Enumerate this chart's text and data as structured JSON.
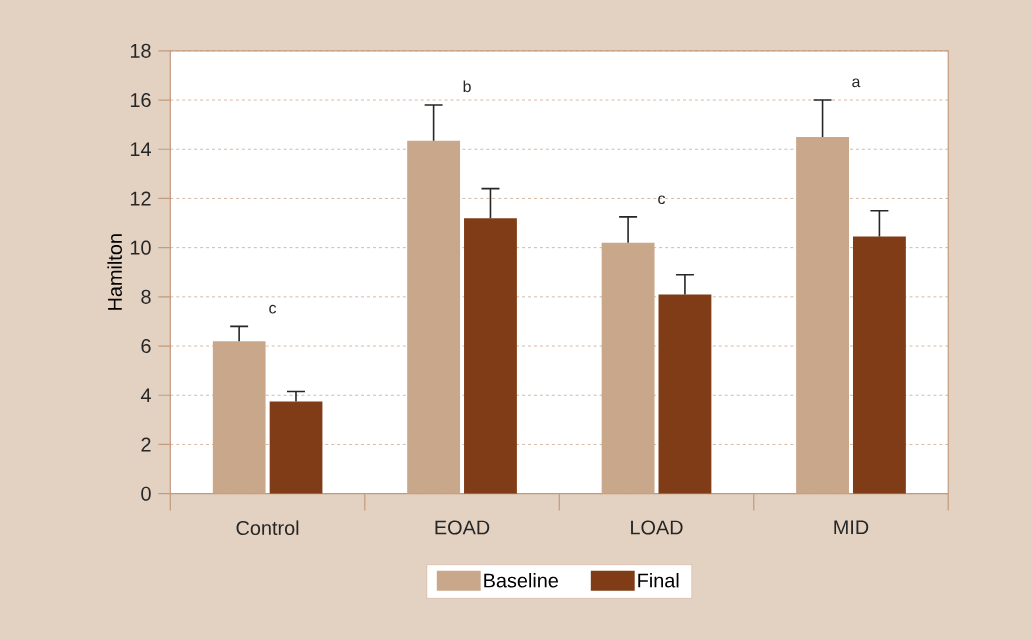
{
  "chart_data": {
    "type": "bar",
    "ylabel": "Hamilton",
    "categories": [
      "Control",
      "EOAD",
      "LOAD",
      "MID"
    ],
    "series": [
      {
        "name": "Baseline",
        "color": "#c8a78a",
        "values": [
          6.2,
          14.35,
          10.2,
          14.5
        ],
        "errors": [
          [
            6.2,
            6.8
          ],
          [
            14.35,
            15.8
          ],
          [
            10.2,
            11.25
          ],
          [
            14.5,
            16.0
          ]
        ]
      },
      {
        "name": "Final",
        "color": "#7f3c16",
        "values": [
          3.75,
          11.2,
          8.1,
          10.45
        ],
        "errors": [
          [
            3.75,
            4.15
          ],
          [
            11.2,
            12.4
          ],
          [
            8.1,
            8.9
          ],
          [
            10.45,
            11.5
          ]
        ]
      }
    ],
    "ylim": [
      0,
      18
    ],
    "yticks": [
      0,
      2,
      4,
      6,
      8,
      10,
      12,
      14,
      16,
      18
    ],
    "grid": "y",
    "legend": "bottom",
    "annotations": [
      "c",
      "b",
      "c",
      "a"
    ]
  }
}
